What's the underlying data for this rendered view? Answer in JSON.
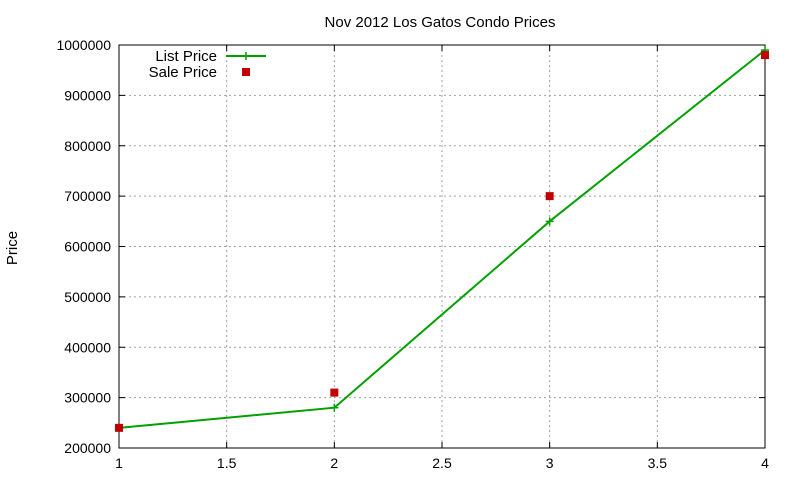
{
  "chart_data": {
    "type": "line",
    "title": "Nov 2012 Los Gatos Condo Prices",
    "xlabel": "",
    "ylabel": "Price",
    "xlim": [
      1,
      4
    ],
    "ylim": [
      200000,
      1000000
    ],
    "x_ticks": [
      1,
      1.5,
      2,
      2.5,
      3,
      3.5,
      4
    ],
    "x_tick_labels": [
      "1",
      "1.5",
      "2",
      "2.5",
      "3",
      "3.5",
      "4"
    ],
    "y_ticks": [
      200000,
      300000,
      400000,
      500000,
      600000,
      700000,
      800000,
      900000,
      1000000
    ],
    "y_tick_labels": [
      "200000",
      "300000",
      "400000",
      "500000",
      "600000",
      "700000",
      "800000",
      "900000",
      "1000000"
    ],
    "grid": true,
    "legend_position": "top-left",
    "series": [
      {
        "name": "List Price",
        "style": "line+cross",
        "color": "#00a000",
        "x": [
          1,
          2,
          3,
          4
        ],
        "values": [
          240000,
          280000,
          650000,
          990000
        ]
      },
      {
        "name": "Sale Price",
        "style": "square-points",
        "color": "#c00000",
        "x": [
          1,
          2,
          3,
          4
        ],
        "values": [
          240000,
          310000,
          700000,
          980000
        ]
      }
    ]
  }
}
